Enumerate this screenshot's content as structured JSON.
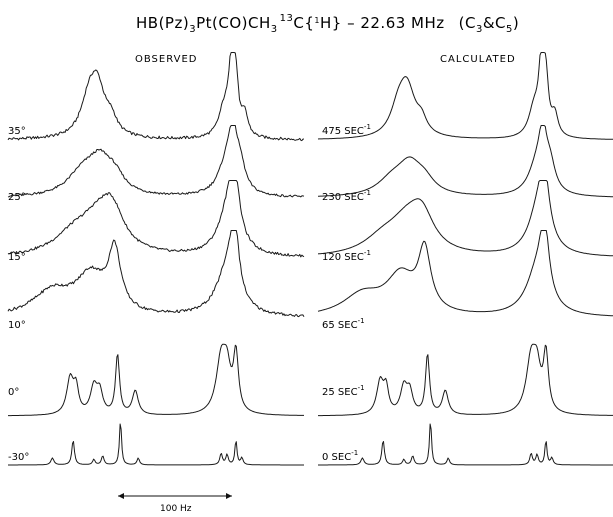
{
  "title": {
    "main": "HB(Pz)",
    "s1": "3",
    "mid": "Pt(CO)CH",
    "s2": "3",
    "sup13": "13",
    "c": "C",
    "lb": "{",
    "sup1": "1",
    "h": "H",
    "rb": "}",
    "freq": "  –  22.63 MHz",
    "paren_open": "(C",
    "c3": "3",
    "amp": "&C",
    "c5": "5",
    "paren_close": ")"
  },
  "observed_label": "OBSERVED",
  "calculated_label": "CALCULATED",
  "scale_label": "100 Hz",
  "chart_data": [
    {
      "type": "line",
      "panel": "observed",
      "title": "OBSERVED",
      "xlabel": "",
      "ylabel": "",
      "series": [
        {
          "name": "35°",
          "peaks": [
            [
              0.27,
              0.03,
              0.35
            ],
            [
              0.3,
              0.035,
              0.78
            ],
            [
              0.35,
              0.02,
              0.18
            ],
            [
              0.73,
              0.022,
              0.4
            ],
            [
              0.755,
              0.011,
              1.0
            ],
            [
              0.77,
              0.01,
              0.7
            ],
            [
              0.8,
              0.013,
              0.3
            ]
          ]
        },
        {
          "name": "25°",
          "peaks": [
            [
              0.25,
              0.06,
              0.35
            ],
            [
              0.31,
              0.05,
              0.55
            ],
            [
              0.36,
              0.04,
              0.25
            ],
            [
              0.74,
              0.035,
              0.55
            ],
            [
              0.76,
              0.016,
              0.85
            ],
            [
              0.785,
              0.02,
              0.4
            ]
          ]
        },
        {
          "name": "15°",
          "peaks": [
            [
              0.22,
              0.08,
              0.3
            ],
            [
              0.3,
              0.07,
              0.45
            ],
            [
              0.35,
              0.05,
              0.62
            ],
            [
              0.745,
              0.04,
              0.7
            ],
            [
              0.765,
              0.02,
              0.95
            ]
          ]
        },
        {
          "name": "10°",
          "peaks": [
            [
              0.15,
              0.08,
              0.35
            ],
            [
              0.28,
              0.06,
              0.55
            ],
            [
              0.36,
              0.025,
              0.85
            ],
            [
              0.74,
              0.045,
              0.6
            ],
            [
              0.765,
              0.018,
              1.0
            ]
          ]
        },
        {
          "name": "0°",
          "peaks": [
            [
              0.21,
              0.014,
              0.6
            ],
            [
              0.23,
              0.01,
              0.4
            ],
            [
              0.29,
              0.014,
              0.45
            ],
            [
              0.31,
              0.012,
              0.35
            ],
            [
              0.37,
              0.008,
              1.0
            ],
            [
              0.43,
              0.012,
              0.4
            ],
            [
              0.72,
              0.02,
              0.9
            ],
            [
              0.74,
              0.015,
              0.6
            ],
            [
              0.77,
              0.01,
              0.95
            ]
          ]
        },
        {
          "name": "-30°",
          "peaks": [
            [
              0.15,
              0.006,
              0.15
            ],
            [
              0.22,
              0.005,
              0.55
            ],
            [
              0.29,
              0.005,
              0.12
            ],
            [
              0.32,
              0.005,
              0.2
            ],
            [
              0.38,
              0.004,
              1.0
            ],
            [
              0.44,
              0.005,
              0.15
            ],
            [
              0.72,
              0.005,
              0.25
            ],
            [
              0.74,
              0.005,
              0.22
            ],
            [
              0.77,
              0.004,
              0.55
            ],
            [
              0.79,
              0.005,
              0.15
            ]
          ]
        }
      ]
    },
    {
      "type": "line",
      "panel": "calculated",
      "title": "CALCULATED",
      "xlabel": "",
      "ylabel": "",
      "series": [
        {
          "name": "475 SEC",
          "peaks": [
            [
              0.27,
              0.03,
              0.3
            ],
            [
              0.3,
              0.035,
              0.72
            ],
            [
              0.35,
              0.02,
              0.18
            ],
            [
              0.73,
              0.022,
              0.4
            ],
            [
              0.755,
              0.011,
              1.0
            ],
            [
              0.77,
              0.01,
              0.7
            ],
            [
              0.8,
              0.013,
              0.3
            ]
          ]
        },
        {
          "name": "230 SEC",
          "peaks": [
            [
              0.25,
              0.06,
              0.25
            ],
            [
              0.31,
              0.05,
              0.5
            ],
            [
              0.36,
              0.04,
              0.2
            ],
            [
              0.74,
              0.035,
              0.5
            ],
            [
              0.76,
              0.016,
              0.85
            ],
            [
              0.785,
              0.02,
              0.4
            ]
          ]
        },
        {
          "name": "120 SEC",
          "peaks": [
            [
              0.22,
              0.08,
              0.25
            ],
            [
              0.3,
              0.07,
              0.45
            ],
            [
              0.35,
              0.05,
              0.55
            ],
            [
              0.745,
              0.04,
              0.7
            ],
            [
              0.765,
              0.02,
              0.95
            ]
          ]
        },
        {
          "name": "65 SEC",
          "peaks": [
            [
              0.15,
              0.08,
              0.3
            ],
            [
              0.28,
              0.06,
              0.55
            ],
            [
              0.36,
              0.025,
              0.85
            ],
            [
              0.74,
              0.045,
              0.6
            ],
            [
              0.765,
              0.018,
              1.0
            ]
          ]
        },
        {
          "name": "25 SEC",
          "peaks": [
            [
              0.21,
              0.014,
              0.55
            ],
            [
              0.23,
              0.01,
              0.4
            ],
            [
              0.29,
              0.014,
              0.45
            ],
            [
              0.31,
              0.012,
              0.35
            ],
            [
              0.37,
              0.008,
              1.0
            ],
            [
              0.43,
              0.012,
              0.4
            ],
            [
              0.72,
              0.02,
              0.9
            ],
            [
              0.74,
              0.015,
              0.6
            ],
            [
              0.77,
              0.01,
              0.95
            ]
          ]
        },
        {
          "name": "0 SEC",
          "peaks": [
            [
              0.15,
              0.006,
              0.15
            ],
            [
              0.22,
              0.005,
              0.55
            ],
            [
              0.29,
              0.005,
              0.12
            ],
            [
              0.32,
              0.005,
              0.2
            ],
            [
              0.38,
              0.004,
              1.0
            ],
            [
              0.44,
              0.005,
              0.15
            ],
            [
              0.72,
              0.005,
              0.25
            ],
            [
              0.74,
              0.005,
              0.22
            ],
            [
              0.77,
              0.004,
              0.55
            ],
            [
              0.79,
              0.005,
              0.15
            ]
          ]
        }
      ]
    }
  ],
  "row_labels_left": [
    "35°",
    "25°",
    "15°",
    "10°",
    "0°",
    "-30°"
  ],
  "row_labels_right": [
    "475 SEC",
    "230 SEC",
    "120 SEC",
    "65 SEC",
    "25 SEC",
    "0 SEC"
  ],
  "rate_superscript": "-1"
}
